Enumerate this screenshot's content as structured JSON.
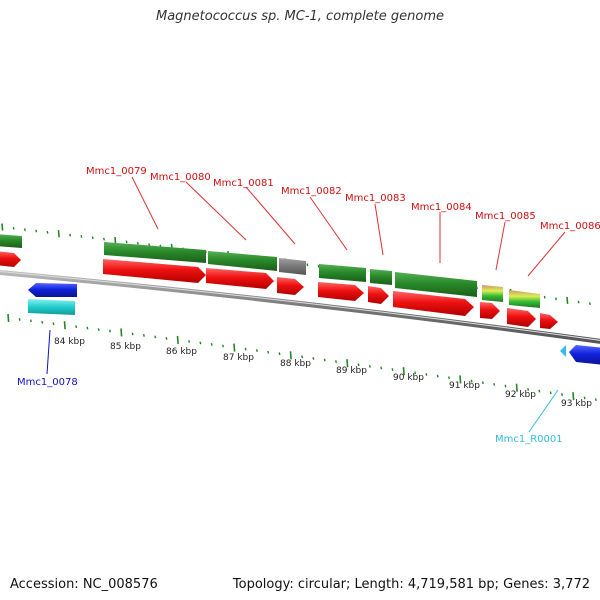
{
  "title": "Magnetococcus sp. MC-1, complete genome",
  "footer": {
    "accession": "Accession: NC_008576",
    "summary": "Topology: circular; Length: 4,719,581 bp; Genes: 3,772"
  },
  "colors": {
    "cds_forward": "#ee1111",
    "gene_forward": "#2a8a2a",
    "gene_pseudo": "#777777",
    "gene_reverse": "#1122dd",
    "rna": "#22cccc",
    "label_forward": "#cc1111",
    "label_reverse": "#1111bb",
    "label_rna": "#33bbdd",
    "ticks": "#228822"
  },
  "scale": {
    "labels": [
      "84 kbp",
      "85 kbp",
      "86 kbp",
      "87 kbp",
      "88 kbp",
      "89 kbp",
      "90 kbp",
      "91 kbp",
      "92 kbp",
      "93 kbp"
    ]
  },
  "genes": [
    {
      "name": "Mmc1_0078",
      "strand": "reverse",
      "kind": "cds"
    },
    {
      "name": "Mmc1_0079",
      "strand": "forward",
      "kind": "cds"
    },
    {
      "name": "Mmc1_0080",
      "strand": "forward",
      "kind": "cds"
    },
    {
      "name": "Mmc1_0081",
      "strand": "forward",
      "kind": "pseudo"
    },
    {
      "name": "Mmc1_0082",
      "strand": "forward",
      "kind": "cds"
    },
    {
      "name": "Mmc1_0083",
      "strand": "forward",
      "kind": "cds"
    },
    {
      "name": "Mmc1_0084",
      "strand": "forward",
      "kind": "cds"
    },
    {
      "name": "Mmc1_0085",
      "strand": "forward",
      "kind": "rna"
    },
    {
      "name": "Mmc1_0086",
      "strand": "forward",
      "kind": "rna"
    },
    {
      "name": "Mmc1_R0001",
      "strand": "reverse",
      "kind": "rna"
    }
  ]
}
